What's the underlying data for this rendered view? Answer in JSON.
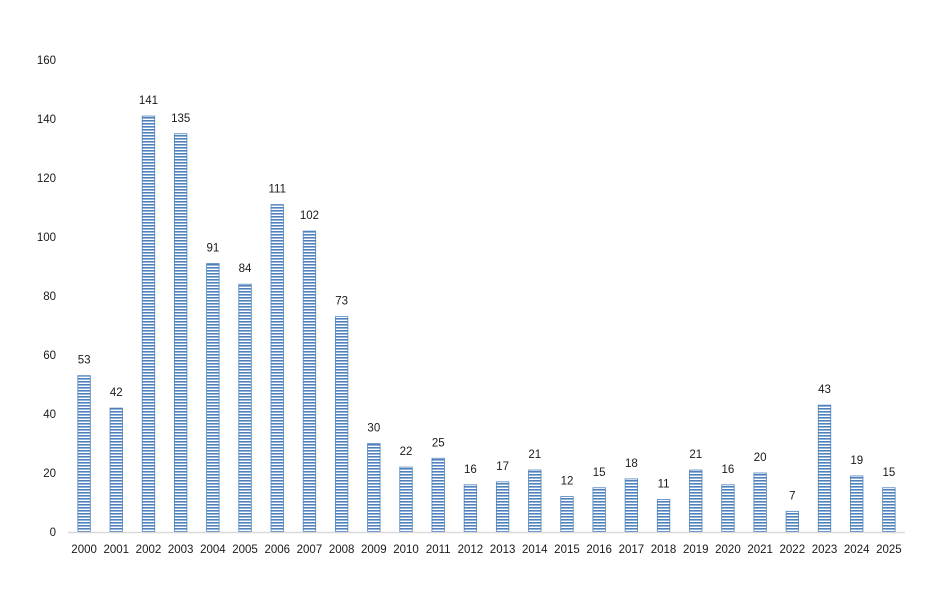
{
  "chart_data": {
    "type": "bar",
    "title": "",
    "xlabel": "",
    "ylabel": "",
    "ylim": [
      0,
      160
    ],
    "yticks": [
      0,
      20,
      40,
      60,
      80,
      100,
      120,
      140,
      160
    ],
    "grid": false,
    "legend": "none",
    "data_labels": true,
    "bar_fill": "horizontal-stripes",
    "colors": {
      "bar_stripe": "#4f81bd",
      "bar_background": "#ffffff",
      "axis_line": "#d9d9d9",
      "text": "#1a1a1a"
    },
    "categories": [
      "2000",
      "2001",
      "2002",
      "2003",
      "2004",
      "2005",
      "2006",
      "2007",
      "2008",
      "2009",
      "2010",
      "2011",
      "2012",
      "2013",
      "2014",
      "2015",
      "2016",
      "2017",
      "2018",
      "2019",
      "2020",
      "2021",
      "2022",
      "2023",
      "2024",
      "2025"
    ],
    "values": [
      53,
      42,
      141,
      135,
      91,
      84,
      111,
      102,
      73,
      30,
      22,
      25,
      16,
      17,
      21,
      12,
      15,
      18,
      11,
      21,
      16,
      20,
      7,
      43,
      19,
      15
    ]
  }
}
